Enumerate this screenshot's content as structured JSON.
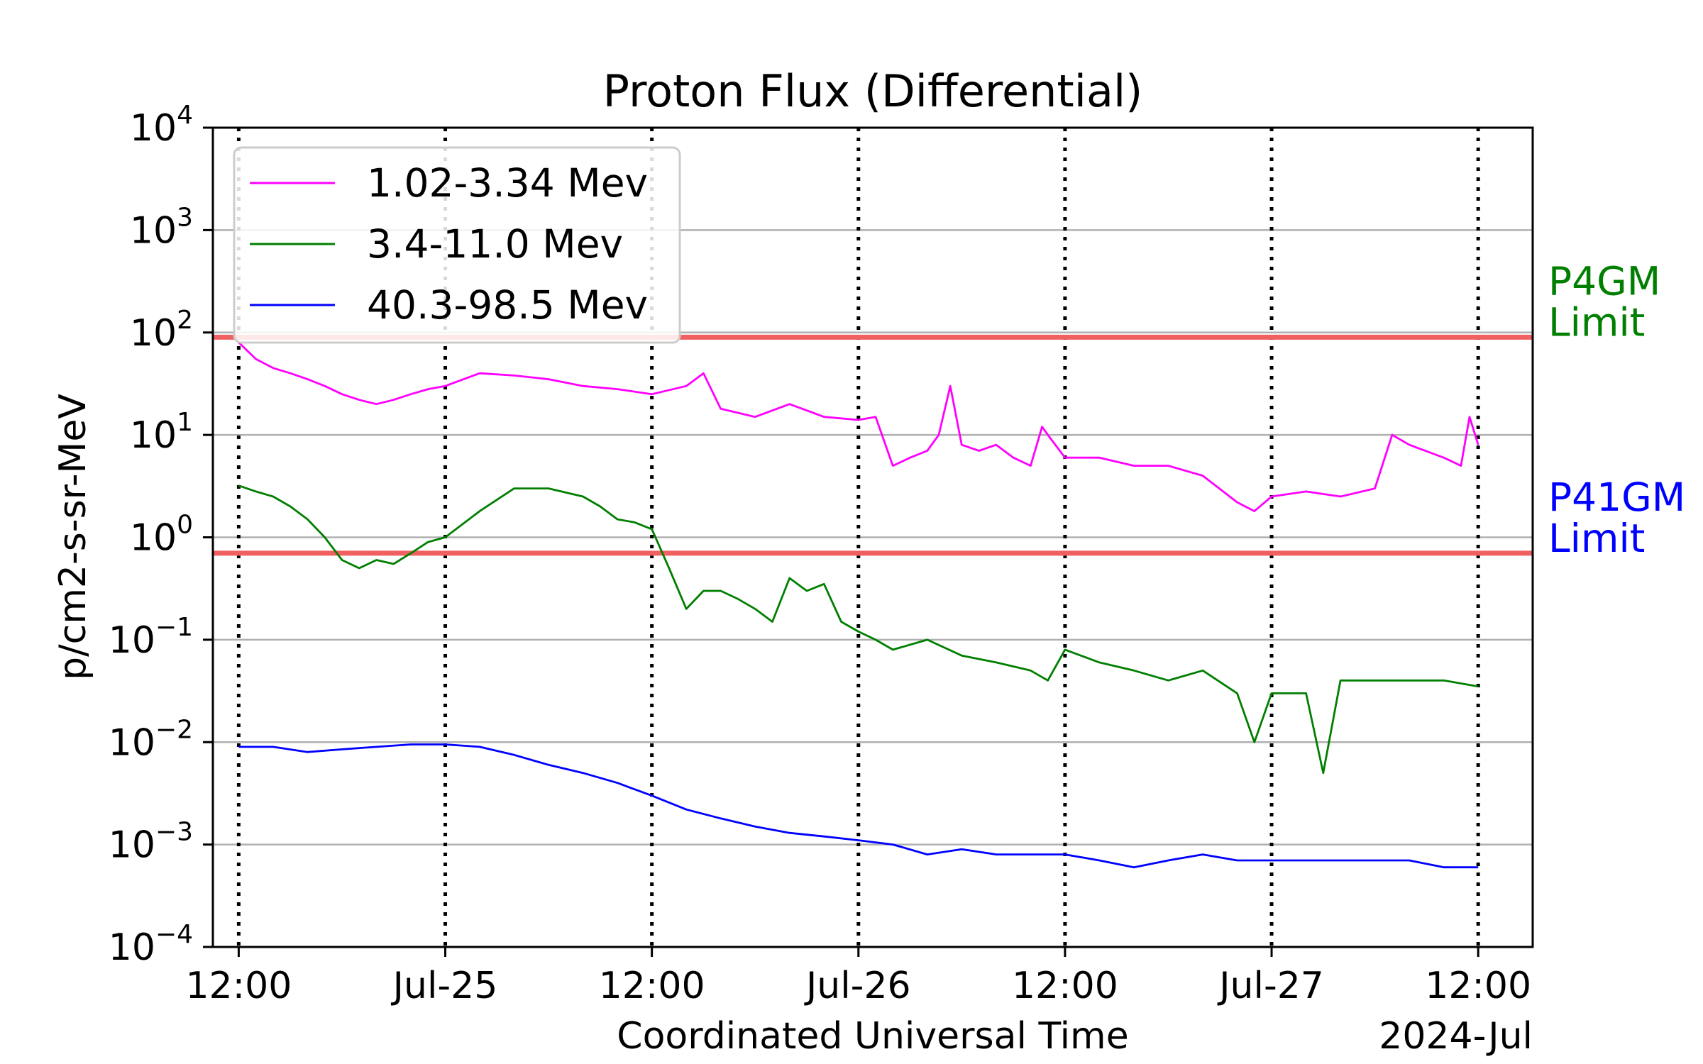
{
  "chart_data": {
    "type": "line",
    "title": "Proton Flux (Differential)",
    "xlabel": "Coordinated Universal Time",
    "ylabel": "p/cm2-s-sr-MeV",
    "y_scale": "log",
    "ylim": [
      0.0001,
      10000
    ],
    "xlim": [
      "2024-07-24T10:30",
      "2024-07-27T15:10"
    ],
    "grid": "horizontal at decades",
    "legend_position": "top-left",
    "x_ticks": [
      {
        "t": "2024-07-24T12:00",
        "label": "12:00"
      },
      {
        "t": "2024-07-25T00:00",
        "label": "Jul-25"
      },
      {
        "t": "2024-07-25T12:00",
        "label": "12:00"
      },
      {
        "t": "2024-07-26T00:00",
        "label": "Jul-26"
      },
      {
        "t": "2024-07-26T12:00",
        "label": "12:00"
      },
      {
        "t": "2024-07-27T00:00",
        "label": "Jul-27"
      },
      {
        "t": "2024-07-27T12:00",
        "label": "12:00"
      }
    ],
    "x_offset_label": "2024-Jul",
    "y_ticks": [
      {
        "v": 0.0001,
        "base": "10",
        "exp": "−4"
      },
      {
        "v": 0.001,
        "base": "10",
        "exp": "−3"
      },
      {
        "v": 0.01,
        "base": "10",
        "exp": "−2"
      },
      {
        "v": 0.1,
        "base": "10",
        "exp": "−1"
      },
      {
        "v": 1,
        "base": "10",
        "exp": "0"
      },
      {
        "v": 10,
        "base": "10",
        "exp": "1"
      },
      {
        "v": 100,
        "base": "10",
        "exp": "2"
      },
      {
        "v": 1000,
        "base": "10",
        "exp": "3"
      },
      {
        "v": 10000,
        "base": "10",
        "exp": "4"
      }
    ],
    "series": [
      {
        "name": "1.02-3.34 Mev",
        "color": "#ff00ff",
        "x": [
          "2024-07-24T12:00",
          "2024-07-24T13:00",
          "2024-07-24T14:00",
          "2024-07-24T15:00",
          "2024-07-24T16:00",
          "2024-07-24T17:00",
          "2024-07-24T18:00",
          "2024-07-24T19:00",
          "2024-07-24T20:00",
          "2024-07-24T21:00",
          "2024-07-24T22:00",
          "2024-07-24T23:00",
          "2024-07-25T00:00",
          "2024-07-25T02:00",
          "2024-07-25T04:00",
          "2024-07-25T06:00",
          "2024-07-25T08:00",
          "2024-07-25T10:00",
          "2024-07-25T12:00",
          "2024-07-25T14:00",
          "2024-07-25T15:00",
          "2024-07-25T16:00",
          "2024-07-25T18:00",
          "2024-07-25T20:00",
          "2024-07-25T22:00",
          "2024-07-26T00:00",
          "2024-07-26T01:00",
          "2024-07-26T02:00",
          "2024-07-26T03:00",
          "2024-07-26T04:00",
          "2024-07-26T04:40",
          "2024-07-26T05:20",
          "2024-07-26T06:00",
          "2024-07-26T07:00",
          "2024-07-26T08:00",
          "2024-07-26T09:00",
          "2024-07-26T10:00",
          "2024-07-26T10:40",
          "2024-07-26T11:00",
          "2024-07-26T12:00",
          "2024-07-26T14:00",
          "2024-07-26T16:00",
          "2024-07-26T18:00",
          "2024-07-26T20:00",
          "2024-07-26T22:00",
          "2024-07-26T23:00",
          "2024-07-27T00:00",
          "2024-07-27T02:00",
          "2024-07-27T04:00",
          "2024-07-27T06:00",
          "2024-07-27T07:00",
          "2024-07-27T08:00",
          "2024-07-27T10:00",
          "2024-07-27T11:00",
          "2024-07-27T11:30",
          "2024-07-27T12:00"
        ],
        "values": [
          80,
          55,
          45,
          40,
          35,
          30,
          25,
          22,
          20,
          22,
          25,
          28,
          30,
          40,
          38,
          35,
          30,
          28,
          25,
          30,
          40,
          18,
          15,
          20,
          15,
          14,
          15,
          5,
          6,
          7,
          10,
          30,
          8,
          7,
          8,
          6,
          5,
          12,
          10,
          6,
          6,
          5,
          5,
          4,
          2.2,
          1.8,
          2.5,
          2.8,
          2.5,
          3,
          10,
          8,
          6,
          5,
          15,
          8
        ]
      },
      {
        "name": "3.4-11.0 Mev",
        "color": "#007f00",
        "x": [
          "2024-07-24T12:00",
          "2024-07-24T13:00",
          "2024-07-24T14:00",
          "2024-07-24T15:00",
          "2024-07-24T16:00",
          "2024-07-24T17:00",
          "2024-07-24T18:00",
          "2024-07-24T19:00",
          "2024-07-24T20:00",
          "2024-07-24T21:00",
          "2024-07-24T22:00",
          "2024-07-24T23:00",
          "2024-07-25T00:00",
          "2024-07-25T02:00",
          "2024-07-25T04:00",
          "2024-07-25T06:00",
          "2024-07-25T08:00",
          "2024-07-25T09:00",
          "2024-07-25T10:00",
          "2024-07-25T11:00",
          "2024-07-25T12:00",
          "2024-07-25T13:00",
          "2024-07-25T14:00",
          "2024-07-25T15:00",
          "2024-07-25T16:00",
          "2024-07-25T17:00",
          "2024-07-25T18:00",
          "2024-07-25T19:00",
          "2024-07-25T20:00",
          "2024-07-25T21:00",
          "2024-07-25T22:00",
          "2024-07-25T23:00",
          "2024-07-26T00:00",
          "2024-07-26T01:00",
          "2024-07-26T02:00",
          "2024-07-26T04:00",
          "2024-07-26T06:00",
          "2024-07-26T08:00",
          "2024-07-26T10:00",
          "2024-07-26T11:00",
          "2024-07-26T12:00",
          "2024-07-26T14:00",
          "2024-07-26T16:00",
          "2024-07-26T18:00",
          "2024-07-26T20:00",
          "2024-07-26T22:00",
          "2024-07-26T23:00",
          "2024-07-27T00:00",
          "2024-07-27T02:00",
          "2024-07-27T03:00",
          "2024-07-27T04:00",
          "2024-07-27T06:00",
          "2024-07-27T08:00",
          "2024-07-27T10:00",
          "2024-07-27T12:00"
        ],
        "values": [
          3.2,
          2.8,
          2.5,
          2,
          1.5,
          1,
          0.6,
          0.5,
          0.6,
          0.55,
          0.7,
          0.9,
          1,
          1.8,
          3,
          3,
          2.5,
          2,
          1.5,
          1.4,
          1.2,
          0.5,
          0.2,
          0.3,
          0.3,
          0.25,
          0.2,
          0.15,
          0.4,
          0.3,
          0.35,
          0.15,
          0.12,
          0.1,
          0.08,
          0.1,
          0.07,
          0.06,
          0.05,
          0.04,
          0.08,
          0.06,
          0.05,
          0.04,
          0.05,
          0.03,
          0.01,
          0.03,
          0.03,
          0.005,
          0.04,
          0.04,
          0.04,
          0.04,
          0.035
        ]
      },
      {
        "name": "40.3-98.5 Mev",
        "color": "#0000ff",
        "x": [
          "2024-07-24T12:00",
          "2024-07-24T14:00",
          "2024-07-24T16:00",
          "2024-07-24T18:00",
          "2024-07-24T20:00",
          "2024-07-24T22:00",
          "2024-07-25T00:00",
          "2024-07-25T02:00",
          "2024-07-25T04:00",
          "2024-07-25T06:00",
          "2024-07-25T08:00",
          "2024-07-25T10:00",
          "2024-07-25T12:00",
          "2024-07-25T14:00",
          "2024-07-25T16:00",
          "2024-07-25T18:00",
          "2024-07-25T20:00",
          "2024-07-25T22:00",
          "2024-07-26T00:00",
          "2024-07-26T02:00",
          "2024-07-26T04:00",
          "2024-07-26T06:00",
          "2024-07-26T08:00",
          "2024-07-26T10:00",
          "2024-07-26T12:00",
          "2024-07-26T14:00",
          "2024-07-26T16:00",
          "2024-07-26T18:00",
          "2024-07-26T20:00",
          "2024-07-26T22:00",
          "2024-07-27T00:00",
          "2024-07-27T02:00",
          "2024-07-27T04:00",
          "2024-07-27T06:00",
          "2024-07-27T08:00",
          "2024-07-27T10:00",
          "2024-07-27T12:00"
        ],
        "values": [
          0.009,
          0.009,
          0.008,
          0.0085,
          0.009,
          0.0095,
          0.0095,
          0.009,
          0.0075,
          0.006,
          0.005,
          0.004,
          0.003,
          0.0022,
          0.0018,
          0.0015,
          0.0013,
          0.0012,
          0.0011,
          0.001,
          0.0008,
          0.0009,
          0.0008,
          0.0008,
          0.0008,
          0.0007,
          0.0006,
          0.0007,
          0.0008,
          0.0007,
          0.0007,
          0.0007,
          0.0007,
          0.0007,
          0.0007,
          0.0006,
          0.0006
        ]
      }
    ],
    "thresholds": [
      {
        "value": 90,
        "color": "#f06060",
        "label_line1": "P4GM",
        "label_line2": "Limit",
        "label_color": "#007f00"
      },
      {
        "value": 0.7,
        "color": "#f06060",
        "label_line1": "P41GM",
        "label_line2": "Limit",
        "label_color": "#0000ff"
      }
    ]
  }
}
